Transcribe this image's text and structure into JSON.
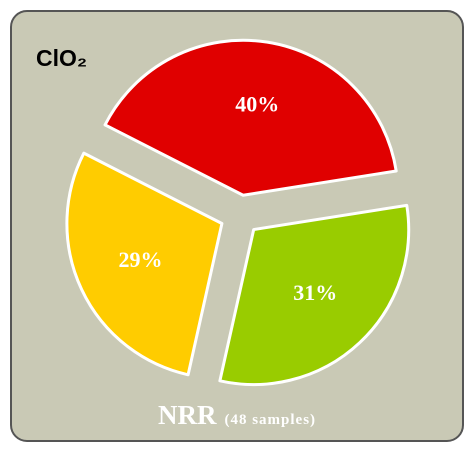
{
  "chart_data": {
    "type": "pie",
    "title": "ClO₂",
    "caption": {
      "main": "NRR",
      "detail": "(48 samples)"
    },
    "values": [
      40,
      31,
      29
    ],
    "value_labels": [
      "40%",
      "31%",
      "29%"
    ],
    "colors": [
      "#e00000",
      "#99cc00",
      "#ffcc00"
    ],
    "exploded": true
  }
}
